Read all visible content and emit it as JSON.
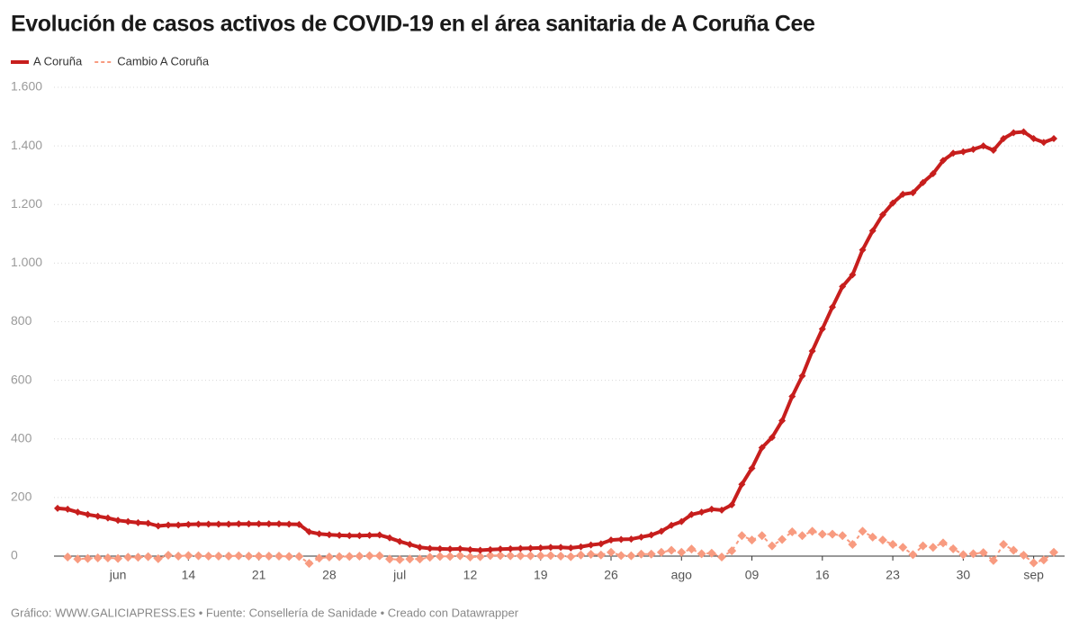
{
  "chart_data": {
    "type": "line",
    "title": "Evolución de casos activos de COVID-19 en el área sanitaria de A Coruña Cee",
    "source": "Gráfico: WWW.GALICIAPRESS.ES • Fuente: Consellería de Sanidade • Creado con Datawrapper",
    "categories": [
      null,
      null,
      null,
      null,
      null,
      null,
      "jun",
      null,
      null,
      null,
      null,
      null,
      null,
      "14",
      null,
      null,
      null,
      null,
      null,
      null,
      "21",
      null,
      null,
      null,
      null,
      null,
      null,
      "28",
      null,
      null,
      null,
      null,
      null,
      null,
      "jul",
      null,
      null,
      null,
      null,
      null,
      null,
      "12",
      null,
      null,
      null,
      null,
      null,
      null,
      "19",
      null,
      null,
      null,
      null,
      null,
      null,
      "26",
      null,
      null,
      null,
      null,
      null,
      null,
      "ago",
      null,
      null,
      null,
      null,
      null,
      null,
      "09",
      null,
      null,
      null,
      null,
      null,
      null,
      "16",
      null,
      null,
      null,
      null,
      null,
      null,
      "23",
      null,
      null,
      null,
      null,
      null,
      null,
      "30",
      null,
      null,
      null,
      null,
      null,
      null,
      "sep",
      null,
      null
    ],
    "series": [
      {
        "name": "A Coruña",
        "color": "#c71e1d",
        "dashed": false,
        "values": [
          163,
          160,
          150,
          142,
          136,
          130,
          122,
          118,
          114,
          112,
          103,
          106,
          106,
          108,
          109,
          109,
          109,
          109,
          110,
          110,
          110,
          110,
          110,
          109,
          108,
          83,
          76,
          73,
          71,
          70,
          70,
          71,
          72,
          62,
          50,
          40,
          30,
          26,
          25,
          24,
          25,
          22,
          20,
          22,
          24,
          25,
          26,
          27,
          28,
          30,
          30,
          28,
          32,
          38,
          42,
          55,
          57,
          58,
          65,
          72,
          85,
          105,
          118,
          142,
          150,
          160,
          157,
          175,
          245,
          300,
          370,
          405,
          462,
          545,
          615,
          700,
          775,
          850,
          920,
          960,
          1045,
          1110,
          1165,
          1205,
          1235,
          1240,
          1275,
          1305,
          1350,
          1375,
          1380,
          1388,
          1400,
          1385,
          1425,
          1445,
          1448,
          1425,
          1412,
          1425
        ]
      },
      {
        "name": "Cambio A Coruña",
        "color": "#f89b80",
        "dashed": true,
        "values": [
          null,
          -3,
          -10,
          -8,
          -6,
          -6,
          -8,
          -4,
          -4,
          -2,
          -9,
          3,
          0,
          2,
          1,
          0,
          0,
          0,
          1,
          0,
          0,
          0,
          0,
          -1,
          -1,
          -25,
          -7,
          -3,
          -2,
          -1,
          0,
          1,
          1,
          -10,
          -12,
          -10,
          -10,
          -4,
          -1,
          -1,
          1,
          -3,
          -2,
          2,
          2,
          1,
          1,
          1,
          1,
          2,
          0,
          -2,
          4,
          6,
          4,
          13,
          2,
          1,
          7,
          7,
          13,
          20,
          13,
          24,
          8,
          10,
          -3,
          18,
          70,
          55,
          70,
          35,
          57,
          83,
          70,
          85,
          75,
          75,
          70,
          40,
          85,
          65,
          55,
          40,
          30,
          5,
          35,
          30,
          45,
          25,
          5,
          8,
          12,
          -15,
          40,
          20,
          3,
          -23,
          -13,
          13
        ]
      }
    ],
    "ylim": [
      0,
      1600
    ],
    "yticks": [
      0,
      200,
      400,
      600,
      800,
      {
        "value": 1000,
        "label": "1.000"
      },
      {
        "value": 1200,
        "label": "1.200"
      },
      {
        "value": 1400,
        "label": "1.400"
      },
      {
        "value": 1600,
        "label": "1.600"
      }
    ],
    "grid": true
  }
}
